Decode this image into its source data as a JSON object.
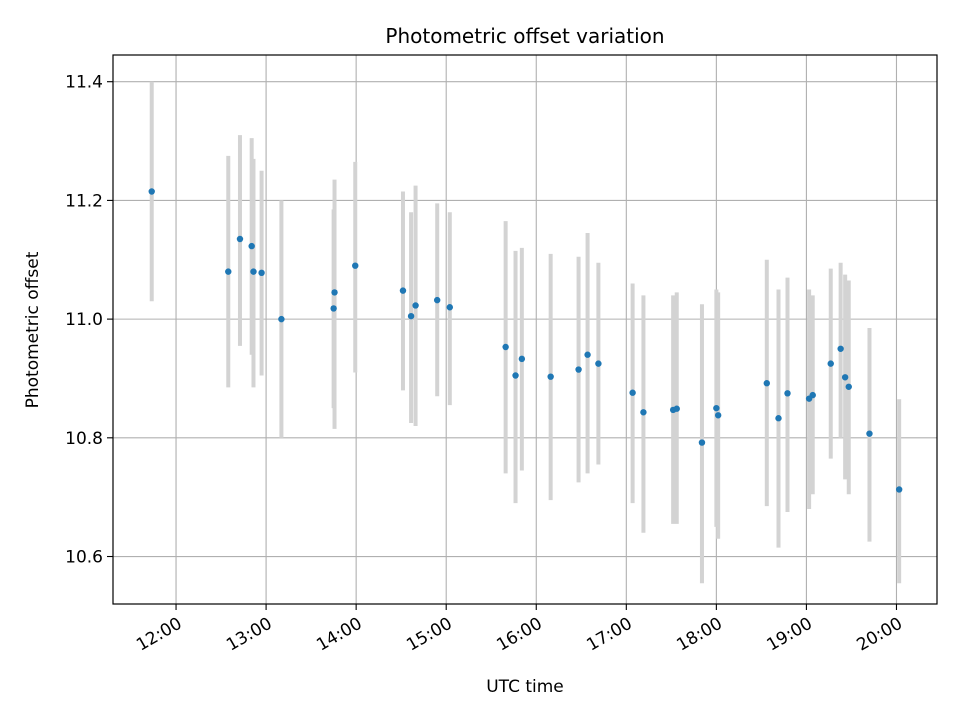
{
  "chart_data": {
    "type": "scatter",
    "title": "Photometric offset variation",
    "xlabel": "UTC time",
    "ylabel": "Photometric offset",
    "x_unit": "hours UTC",
    "xlim": [
      11.3,
      20.45
    ],
    "ylim": [
      10.52,
      11.445
    ],
    "xticks": [
      {
        "value": 12,
        "label": "12:00"
      },
      {
        "value": 13,
        "label": "13:00"
      },
      {
        "value": 14,
        "label": "14:00"
      },
      {
        "value": 15,
        "label": "15:00"
      },
      {
        "value": 16,
        "label": "16:00"
      },
      {
        "value": 17,
        "label": "17:00"
      },
      {
        "value": 18,
        "label": "18:00"
      },
      {
        "value": 19,
        "label": "19:00"
      },
      {
        "value": 20,
        "label": "20:00"
      }
    ],
    "yticks": [
      {
        "value": 10.6,
        "label": "10.6"
      },
      {
        "value": 10.8,
        "label": "10.8"
      },
      {
        "value": 11.0,
        "label": "11.0"
      },
      {
        "value": 11.2,
        "label": "11.2"
      },
      {
        "value": 11.4,
        "label": "11.4"
      }
    ],
    "grid": true,
    "marker_color": "#1f77b4",
    "errorbar_color": "#d3d3d3",
    "points": [
      {
        "x": 11.73,
        "y": 11.215,
        "lo": 11.03,
        "hi": 11.4
      },
      {
        "x": 12.58,
        "y": 11.08,
        "lo": 10.885,
        "hi": 11.275
      },
      {
        "x": 12.71,
        "y": 11.135,
        "lo": 10.955,
        "hi": 11.31
      },
      {
        "x": 12.84,
        "y": 11.123,
        "lo": 10.94,
        "hi": 11.305
      },
      {
        "x": 12.86,
        "y": 11.08,
        "lo": 10.885,
        "hi": 11.27
      },
      {
        "x": 12.95,
        "y": 11.078,
        "lo": 10.905,
        "hi": 11.25
      },
      {
        "x": 13.17,
        "y": 11.0,
        "lo": 10.8,
        "hi": 11.2
      },
      {
        "x": 13.75,
        "y": 11.018,
        "lo": 10.85,
        "hi": 11.185
      },
      {
        "x": 13.76,
        "y": 11.045,
        "lo": 10.815,
        "hi": 11.235
      },
      {
        "x": 13.99,
        "y": 11.09,
        "lo": 10.91,
        "hi": 11.265
      },
      {
        "x": 14.52,
        "y": 11.048,
        "lo": 10.88,
        "hi": 11.215
      },
      {
        "x": 14.61,
        "y": 11.005,
        "lo": 10.825,
        "hi": 11.18
      },
      {
        "x": 14.66,
        "y": 11.023,
        "lo": 10.82,
        "hi": 11.225
      },
      {
        "x": 14.9,
        "y": 11.032,
        "lo": 10.87,
        "hi": 11.195
      },
      {
        "x": 15.04,
        "y": 11.02,
        "lo": 10.855,
        "hi": 11.18
      },
      {
        "x": 15.66,
        "y": 10.953,
        "lo": 10.74,
        "hi": 11.165
      },
      {
        "x": 15.77,
        "y": 10.905,
        "lo": 10.69,
        "hi": 11.115
      },
      {
        "x": 15.84,
        "y": 10.933,
        "lo": 10.745,
        "hi": 11.12
      },
      {
        "x": 16.16,
        "y": 10.903,
        "lo": 10.695,
        "hi": 11.11
      },
      {
        "x": 16.47,
        "y": 10.915,
        "lo": 10.725,
        "hi": 11.105
      },
      {
        "x": 16.57,
        "y": 10.94,
        "lo": 10.74,
        "hi": 11.145
      },
      {
        "x": 16.69,
        "y": 10.925,
        "lo": 10.755,
        "hi": 11.095
      },
      {
        "x": 17.07,
        "y": 10.876,
        "lo": 10.69,
        "hi": 11.06
      },
      {
        "x": 17.19,
        "y": 10.843,
        "lo": 10.64,
        "hi": 11.04
      },
      {
        "x": 17.52,
        "y": 10.847,
        "lo": 10.655,
        "hi": 11.04
      },
      {
        "x": 17.56,
        "y": 10.849,
        "lo": 10.655,
        "hi": 11.045
      },
      {
        "x": 17.84,
        "y": 10.792,
        "lo": 10.555,
        "hi": 11.025
      },
      {
        "x": 18.0,
        "y": 10.85,
        "lo": 10.65,
        "hi": 11.05
      },
      {
        "x": 18.02,
        "y": 10.838,
        "lo": 10.63,
        "hi": 11.045
      },
      {
        "x": 18.56,
        "y": 10.892,
        "lo": 10.685,
        "hi": 11.1
      },
      {
        "x": 18.69,
        "y": 10.833,
        "lo": 10.615,
        "hi": 11.05
      },
      {
        "x": 18.79,
        "y": 10.875,
        "lo": 10.675,
        "hi": 11.07
      },
      {
        "x": 19.03,
        "y": 10.866,
        "lo": 10.68,
        "hi": 11.05
      },
      {
        "x": 19.07,
        "y": 10.872,
        "lo": 10.705,
        "hi": 11.04
      },
      {
        "x": 19.27,
        "y": 10.925,
        "lo": 10.765,
        "hi": 11.085
      },
      {
        "x": 19.38,
        "y": 10.95,
        "lo": 10.8,
        "hi": 11.095
      },
      {
        "x": 19.43,
        "y": 10.902,
        "lo": 10.73,
        "hi": 11.075
      },
      {
        "x": 19.47,
        "y": 10.886,
        "lo": 10.705,
        "hi": 11.065
      },
      {
        "x": 19.7,
        "y": 10.807,
        "lo": 10.625,
        "hi": 10.985
      },
      {
        "x": 20.03,
        "y": 10.713,
        "lo": 10.555,
        "hi": 10.865
      }
    ]
  }
}
